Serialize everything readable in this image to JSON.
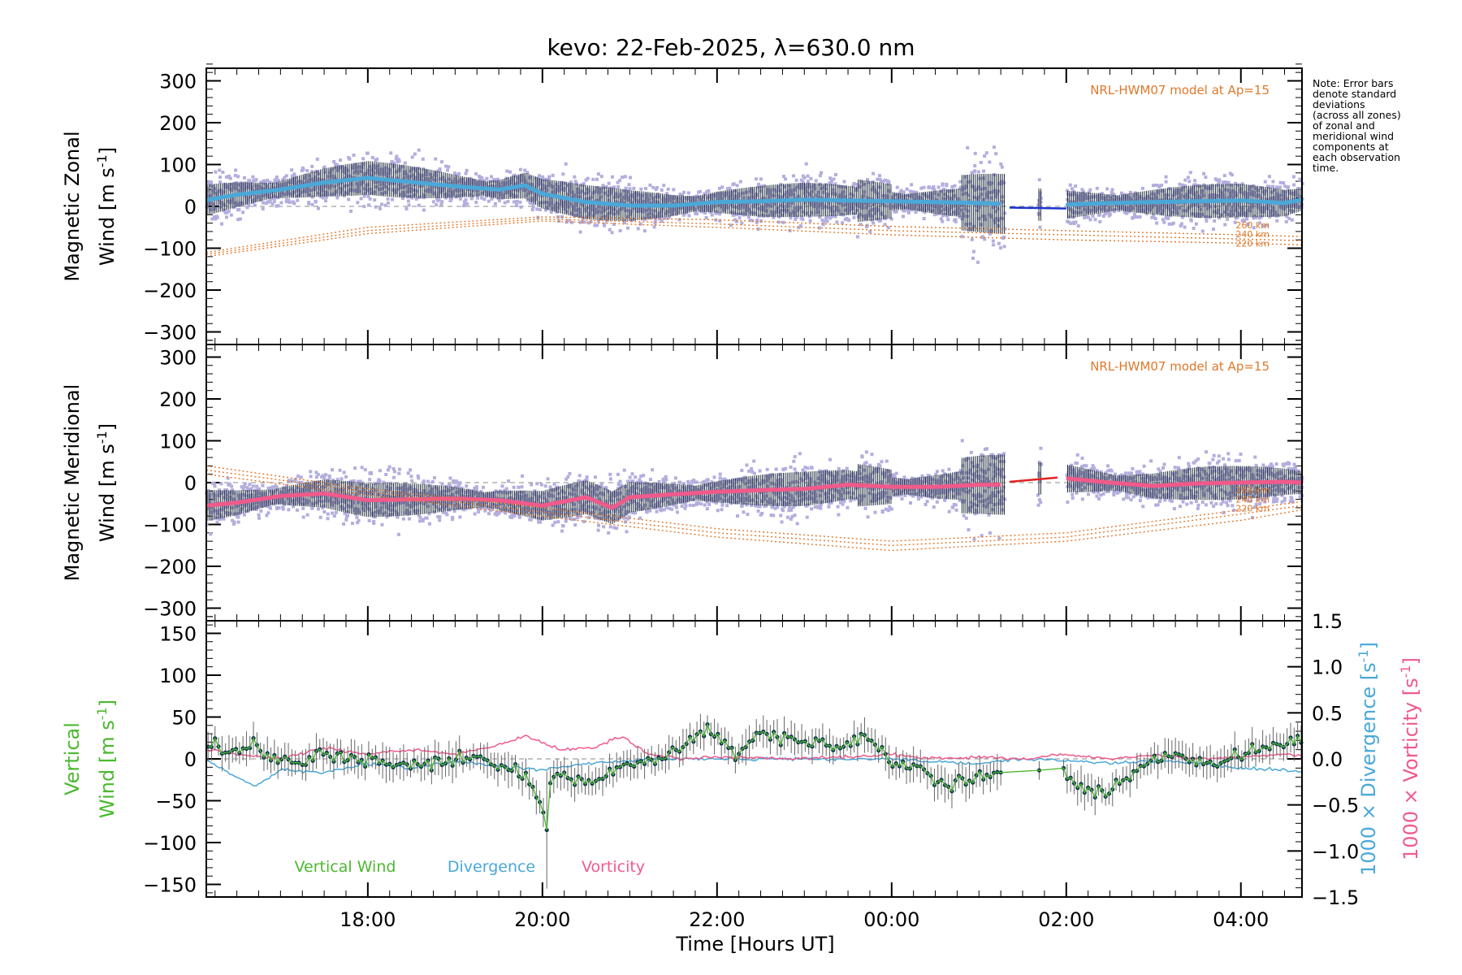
{
  "chart_data": [
    {
      "type": "line",
      "panel": "zonal",
      "title": "kevo: 22-Feb-2025, λ=630.0 nm",
      "ylabel_line1": "Magnetic Zonal",
      "ylabel_line2": "Wind [m s",
      "ylabel_sup": "-1",
      "ylabel_end": "]",
      "ylim": [
        -330,
        330
      ],
      "yticks": [
        300,
        200,
        100,
        0,
        -100,
        -200,
        -300
      ],
      "ytick_labels": [
        "300",
        "200",
        "100",
        "0",
        "−100",
        "−200",
        "−300"
      ],
      "model_label": "NRL-HWM07 model at Ap=15",
      "altitude_labels": [
        "260 km",
        "240 km",
        "220 km"
      ],
      "series": [
        {
          "name": "Zonal wind (mean)",
          "color": "#4aa8d8",
          "x": [
            16.15,
            16.5,
            17,
            17.5,
            18,
            18.5,
            19,
            19.5,
            19.8,
            20,
            20.5,
            21,
            21.5,
            22,
            22.5,
            23,
            23.5,
            24,
            24.5,
            25,
            25.25
          ],
          "values": [
            15,
            28,
            40,
            57,
            68,
            58,
            48,
            40,
            50,
            30,
            10,
            2,
            2,
            10,
            12,
            16,
            14,
            12,
            10,
            8,
            6
          ]
        },
        {
          "name": "Zonal wind (gap segment)",
          "color": "#1a33d0",
          "x": [
            25.35,
            26.0
          ],
          "values": [
            -3,
            -5
          ]
        },
        {
          "name": "Zonal wind (late)",
          "color": "#4aa8d8",
          "x": [
            26.0,
            26.5,
            27,
            27.5,
            28,
            28.5,
            28.7
          ],
          "values": [
            4,
            8,
            10,
            12,
            14,
            8,
            16
          ]
        },
        {
          "name": "HWM07 260 km",
          "color": "#e0782b",
          "x": [
            16.15,
            18,
            20,
            22,
            24,
            26,
            28,
            28.7
          ],
          "values": [
            -110,
            -50,
            -25,
            -32,
            -48,
            -58,
            -68,
            -72
          ]
        },
        {
          "name": "HWM07 240 km",
          "color": "#e0782b",
          "x": [
            16.15,
            18,
            20,
            22,
            24,
            26,
            28,
            28.7
          ],
          "values": [
            -115,
            -58,
            -30,
            -42,
            -58,
            -68,
            -78,
            -82
          ]
        },
        {
          "name": "HWM07 220 km",
          "color": "#e0782b",
          "x": [
            16.15,
            18,
            20,
            22,
            24,
            26,
            28,
            28.7
          ],
          "values": [
            -120,
            -65,
            -35,
            -50,
            -68,
            -80,
            -88,
            -92
          ]
        }
      ]
    },
    {
      "type": "line",
      "panel": "meridional",
      "ylabel_line1": "Magnetic Meridional",
      "ylabel_line2": "Wind [m s",
      "ylabel_sup": "-1",
      "ylabel_end": "]",
      "ylim": [
        -330,
        330
      ],
      "yticks": [
        300,
        200,
        100,
        0,
        -100,
        -200,
        -300
      ],
      "ytick_labels": [
        "300",
        "200",
        "100",
        "0",
        "−100",
        "−200",
        "−300"
      ],
      "model_label": "NRL-HWM07 model at Ap=15",
      "altitude_labels": [
        "260 km",
        "240 km",
        "220 km"
      ],
      "series": [
        {
          "name": "Meridional wind (mean)",
          "color": "#f05a8a",
          "x": [
            16.15,
            16.5,
            17,
            17.5,
            18,
            18.5,
            19,
            19.5,
            20,
            20.5,
            20.8,
            21,
            21.5,
            22,
            22.5,
            23,
            23.5,
            24,
            24.5,
            25,
            25.25
          ],
          "values": [
            -55,
            -48,
            -32,
            -26,
            -42,
            -40,
            -38,
            -42,
            -55,
            -35,
            -60,
            -35,
            -28,
            -22,
            -18,
            -15,
            -5,
            -10,
            -10,
            -5,
            -5
          ]
        },
        {
          "name": "Meridional wind (gap segment)",
          "color": "#e02020",
          "x": [
            25.35,
            25.9
          ],
          "values": [
            2,
            12
          ]
        },
        {
          "name": "Meridional wind (late)",
          "color": "#f05a8a",
          "x": [
            26.0,
            26.5,
            27,
            27.5,
            28,
            28.5,
            28.7
          ],
          "values": [
            10,
            0,
            -8,
            -2,
            0,
            2,
            0
          ]
        },
        {
          "name": "HWM07 260 km",
          "color": "#e0782b",
          "x": [
            16.15,
            18,
            20,
            22,
            24,
            26,
            28,
            28.7
          ],
          "values": [
            40,
            -15,
            -60,
            -110,
            -140,
            -120,
            -65,
            -45
          ]
        },
        {
          "name": "HWM07 240 km",
          "color": "#e0782b",
          "x": [
            16.15,
            18,
            20,
            22,
            24,
            26,
            28,
            28.7
          ],
          "values": [
            30,
            -22,
            -70,
            -120,
            -150,
            -130,
            -75,
            -55
          ]
        },
        {
          "name": "HWM07 220 km",
          "color": "#e0782b",
          "x": [
            16.15,
            18,
            20,
            22,
            24,
            26,
            28,
            28.7
          ],
          "values": [
            20,
            -30,
            -80,
            -130,
            -162,
            -140,
            -90,
            -65
          ]
        }
      ]
    },
    {
      "type": "line",
      "panel": "vertical",
      "ylabel_line1": "Vertical",
      "ylabel_line2": "Wind [m s",
      "ylabel_sup": "-1",
      "ylabel_end": "]",
      "ylabel_color": "#4cb82f",
      "ylim": [
        -165,
        165
      ],
      "yticks": [
        150,
        100,
        50,
        0,
        -50,
        -100,
        -150
      ],
      "ytick_labels": [
        "150",
        "100",
        "50",
        "0",
        "−50",
        "−100",
        "−150"
      ],
      "y2lim": [
        -1.5,
        1.5
      ],
      "y2ticks": [
        1.5,
        1.0,
        0.5,
        0.0,
        -0.5,
        -1.0,
        -1.5
      ],
      "y2tick_labels": [
        "1.5",
        "1.0",
        "0.5",
        "0.0",
        "−0.5",
        "−1.0",
        "−1.5"
      ],
      "y2label_divergence": "1000 × Divergence [s",
      "y2label_vorticity": "1000 × Vorticity [s",
      "y2label_sup": "-1",
      "y2label_end": "]",
      "legend": [
        "Vertical Wind",
        "Divergence",
        "Vorticity"
      ],
      "series": [
        {
          "name": "Vertical Wind",
          "color": "#4cb82f",
          "x": [
            16.15,
            16.4,
            16.7,
            17,
            17.3,
            17.6,
            18,
            18.3,
            18.7,
            19,
            19.3,
            19.6,
            19.9,
            20.05,
            20.1,
            20.2,
            20.5,
            20.8,
            21,
            21.3,
            21.6,
            21.9,
            22.2,
            22.5,
            22.8,
            23.1,
            23.4,
            23.7,
            24,
            24.3,
            24.6,
            24.9,
            25.2,
            25.6,
            25.95,
            26.2,
            26.4,
            26.6,
            26.9,
            27.2,
            27.5,
            27.8,
            28.1,
            28.4,
            28.7
          ],
          "values": [
            20,
            8,
            18,
            -5,
            0,
            5,
            0,
            -8,
            -8,
            0,
            -2,
            -12,
            -28,
            -85,
            -20,
            -20,
            -28,
            -15,
            -10,
            2,
            15,
            38,
            5,
            30,
            25,
            22,
            18,
            28,
            -5,
            -8,
            -30,
            -28,
            -15,
            -15,
            -10,
            -35,
            -45,
            -30,
            -8,
            5,
            -5,
            -5,
            10,
            18,
            20
          ]
        },
        {
          "name": "Divergence",
          "color": "#4aa8d8",
          "x": [
            16.15,
            16.4,
            16.7,
            17,
            17.5,
            18,
            18.5,
            19,
            19.5,
            20,
            20.5,
            21,
            21.5,
            22,
            23,
            24,
            24.5,
            25,
            25.5,
            26,
            26.5,
            27,
            27.5,
            28,
            28.5,
            28.7
          ],
          "values": [
            0,
            -0.15,
            -0.3,
            -0.12,
            -0.15,
            -0.05,
            -0.1,
            -0.02,
            -0.08,
            -0.12,
            -0.05,
            -0.02,
            0.0,
            0.0,
            0.0,
            0.0,
            -0.03,
            -0.05,
            0.0,
            -0.02,
            -0.05,
            -0.02,
            -0.05,
            -0.1,
            -0.12,
            -0.14
          ]
        },
        {
          "name": "Vorticity",
          "color": "#f05a8a",
          "x": [
            16.15,
            16.5,
            17,
            17.5,
            18,
            18.5,
            19,
            19.5,
            19.8,
            20.2,
            20.6,
            20.9,
            21.2,
            21.6,
            22,
            23,
            24,
            24.5,
            25,
            25.5,
            26,
            26.5,
            27,
            27.5,
            28,
            28.5,
            28.7
          ],
          "values": [
            0.1,
            0.05,
            0.0,
            0.12,
            0.05,
            0.1,
            0.05,
            0.15,
            0.25,
            0.1,
            0.12,
            0.25,
            0.05,
            0.0,
            0.02,
            0.0,
            0.05,
            0.0,
            0.02,
            0.0,
            0.05,
            0.0,
            0.05,
            0.0,
            0.02,
            0.05,
            0.03
          ]
        }
      ]
    }
  ],
  "x_axis": {
    "label": "Time [Hours UT]",
    "xlim": [
      16.15,
      28.7
    ],
    "ticks": [
      18,
      20,
      22,
      24,
      26,
      28
    ],
    "tick_labels": [
      "18:00",
      "20:00",
      "22:00",
      "00:00",
      "02:00",
      "04:00"
    ]
  },
  "note": "Note: Error bars\ndenote standard\ndeviations\n(across all zones)\nof zonal and\nmeridional wind\ncomponents at\neach observation\ntime.",
  "colors": {
    "scatter": "#b3aede",
    "error_bar": "#1c2a38",
    "model": "#e0782b",
    "zonal_mean": "#4aa8d8",
    "meridional_mean": "#f05a8a",
    "vertical": "#4cb82f",
    "divergence": "#4aa8d8",
    "vorticity": "#f05a8a"
  }
}
